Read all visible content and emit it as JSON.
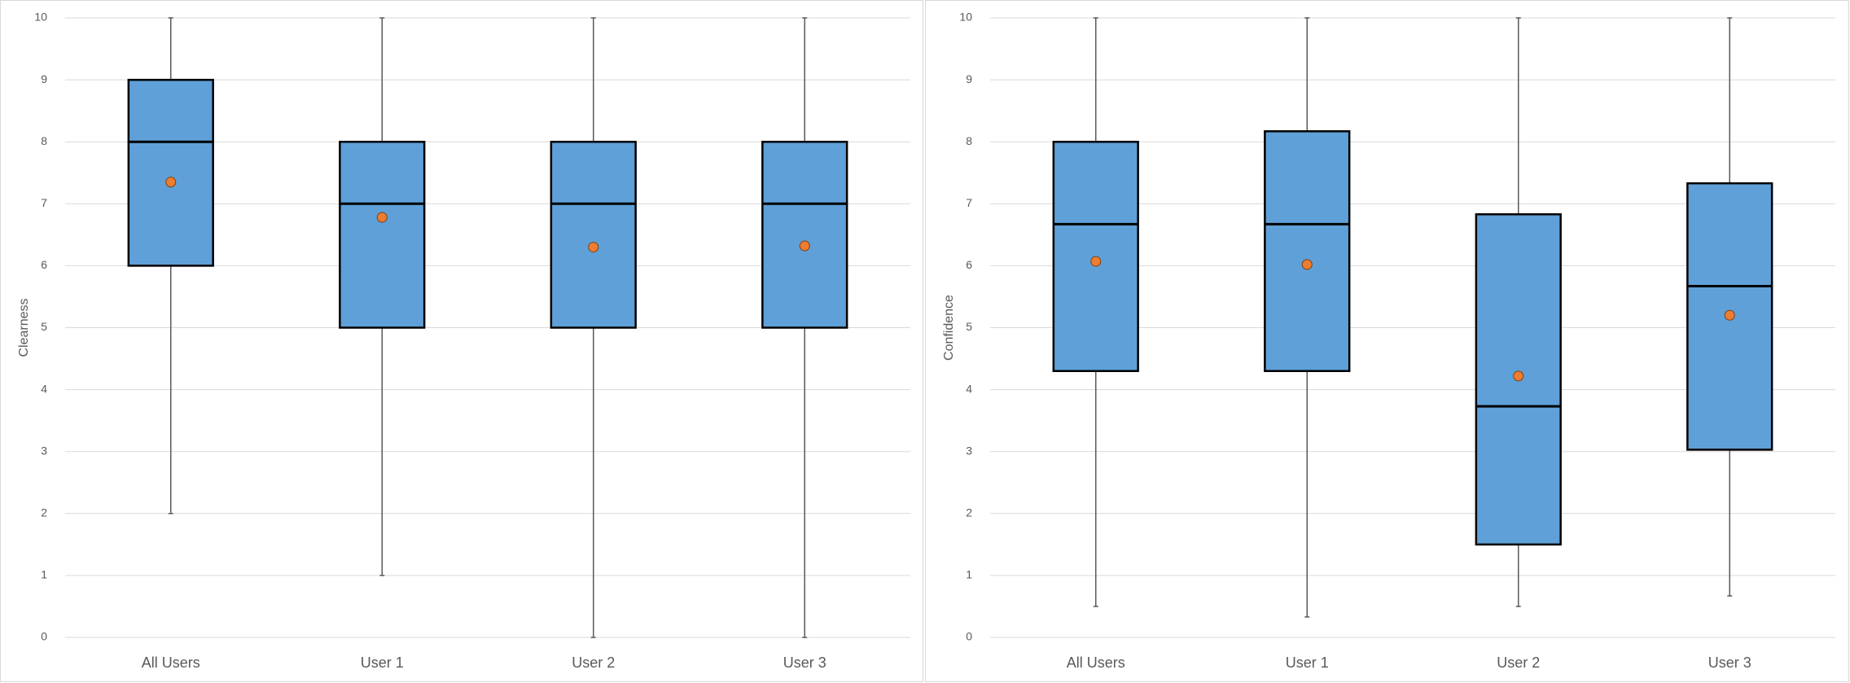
{
  "chart_data": [
    {
      "type": "box",
      "ylabel": "Clearness",
      "categories": [
        "All Users",
        "User 1",
        "User 2",
        "User 3"
      ],
      "min": [
        2,
        1,
        0,
        0
      ],
      "q1": [
        6,
        5,
        5,
        5
      ],
      "median": [
        8,
        7,
        7,
        7
      ],
      "q3": [
        9,
        8,
        8,
        8
      ],
      "max": [
        10,
        10,
        10,
        10
      ],
      "mean": [
        7.35,
        6.78,
        6.3,
        6.32
      ],
      "color": "#5fa0d8",
      "mean_color": "#ed7d31",
      "ylim": [
        0,
        10
      ],
      "yticks": [
        0,
        1,
        2,
        3,
        4,
        5,
        6,
        7,
        8,
        9,
        10
      ],
      "grid": true
    },
    {
      "type": "box",
      "ylabel": "Confidence",
      "categories": [
        "All Users",
        "User 1",
        "User 2",
        "User 3"
      ],
      "min": [
        0.5,
        0.33,
        0.5,
        0.67
      ],
      "q1": [
        4.3,
        4.3,
        1.5,
        3.03
      ],
      "median": [
        6.67,
        6.67,
        3.73,
        5.67
      ],
      "q3": [
        8,
        8.17,
        6.83,
        7.33
      ],
      "max": [
        10,
        10,
        10,
        10
      ],
      "mean": [
        6.07,
        6.02,
        4.22,
        5.2
      ],
      "color": "#5fa0d8",
      "mean_color": "#ed7d31",
      "ylim": [
        0,
        10
      ],
      "yticks": [
        0,
        1,
        2,
        3,
        4,
        5,
        6,
        7,
        8,
        9,
        10
      ],
      "grid": true
    }
  ]
}
